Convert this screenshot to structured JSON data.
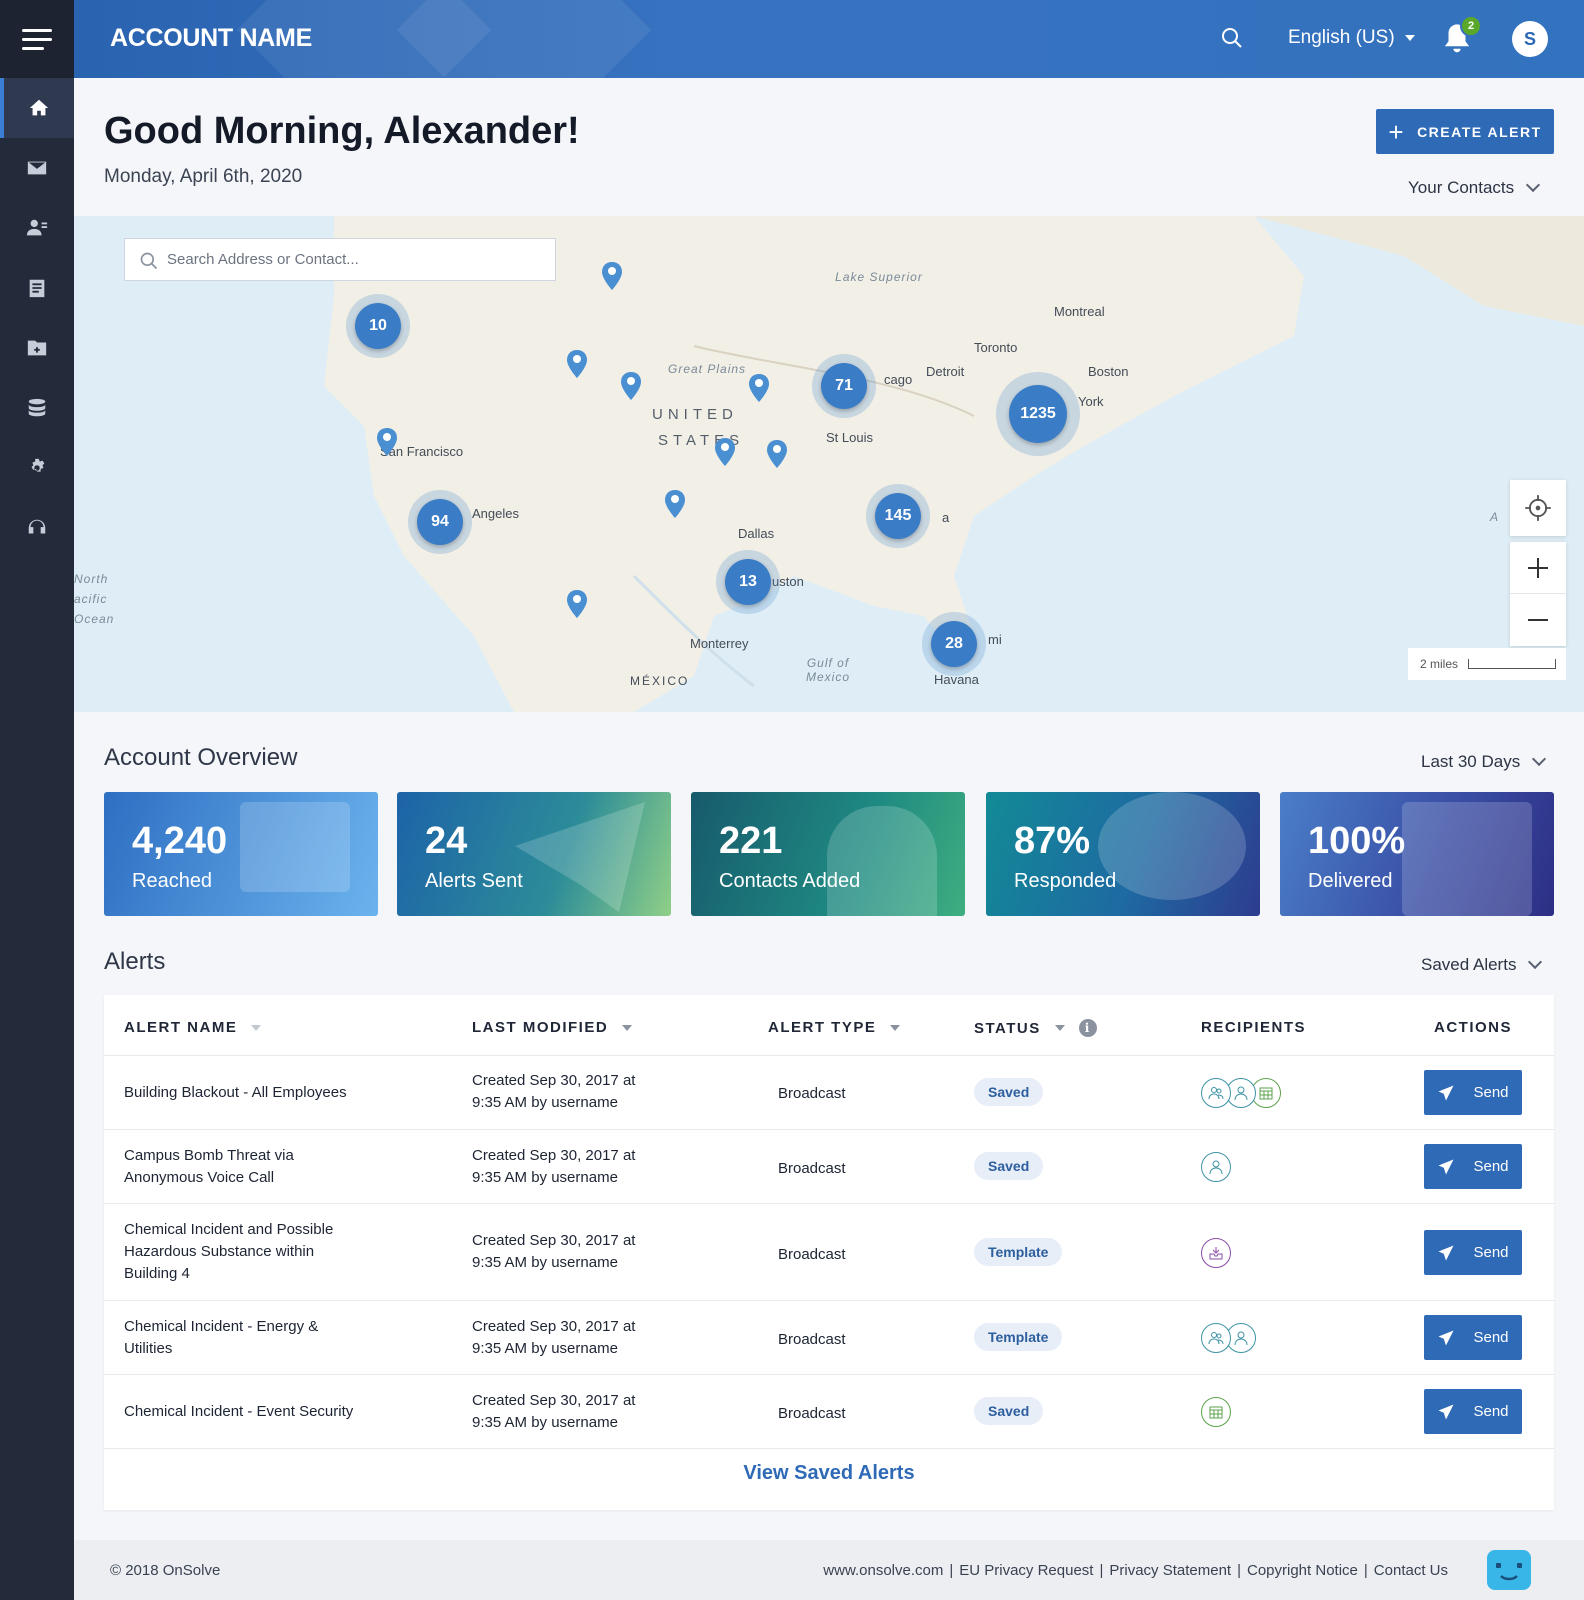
{
  "header": {
    "account_name": "ACCOUNT NAME",
    "language": "English (US)",
    "notification_count": "2",
    "avatar_initial": "S"
  },
  "sidebar": {
    "items": [
      {
        "icon": "home-icon",
        "active": true
      },
      {
        "icon": "mail-icon"
      },
      {
        "icon": "contacts-icon"
      },
      {
        "icon": "clipboard-icon"
      },
      {
        "icon": "folder-add-icon"
      },
      {
        "icon": "database-icon"
      },
      {
        "icon": "gear-icon"
      },
      {
        "icon": "headset-icon"
      }
    ]
  },
  "greeting": {
    "title": "Good Morning, Alexander!",
    "date": "Monday, April 6th, 2020",
    "create_label": "CREATE ALERT",
    "contacts_dropdown": "Your Contacts"
  },
  "map": {
    "search_placeholder": "Search Address or Contact...",
    "clusters": [
      "10",
      "71",
      "1235",
      "94",
      "145",
      "13",
      "28"
    ],
    "labels": {
      "lake_superior": "Lake Superior",
      "montreal": "Montreal",
      "toronto": "Toronto",
      "detroit": "Detroit",
      "boston": "Boston",
      "york": "York",
      "chicago": "cago",
      "great_plains": "Great Plains",
      "united": "UNITED",
      "states": "STATES",
      "st_louis": "St Louis",
      "san_francisco": "San Francisco",
      "angeles": "Angeles",
      "dallas": "Dallas",
      "houston": "uston",
      "north": "North",
      "pacific": "acific",
      "ocean": "Ocean",
      "monterrey": "Monterrey",
      "gulf": "Gulf of",
      "mexico_gulf": "Mexico",
      "mexico": "MÉXICO",
      "havana": "Havana",
      "miami": "mi",
      "atlanta": "a",
      "atlantic": "A"
    },
    "scale_label": "2 miles"
  },
  "overview": {
    "title": "Account Overview",
    "range": "Last 30 Days",
    "cards": [
      {
        "value": "4,240",
        "label": "Reached",
        "color": "#3577c9"
      },
      {
        "value": "24",
        "label": "Alerts Sent",
        "color": "#1f6da8"
      },
      {
        "value": "221",
        "label": "Contacts Added",
        "color": "#1b6f78"
      },
      {
        "value": "87%",
        "label": "Responded",
        "color": "#1b8a96"
      },
      {
        "value": "100%",
        "label": "Delivered",
        "color": "#3c4fa8"
      }
    ]
  },
  "alerts": {
    "title": "Alerts",
    "filter": "Saved Alerts",
    "columns": [
      "ALERT NAME",
      "LAST MODIFIED",
      "ALERT TYPE",
      "STATUS",
      "RECIPIENTS",
      "ACTIONS"
    ],
    "rows": [
      {
        "name": "Building Blackout - All Employees",
        "modified_1": "Created Sep 30, 2017 at",
        "modified_2": "9:35 AM by username",
        "type": "Broadcast",
        "status": "Saved",
        "recipients": [
          "group-icon",
          "person-icon",
          "calendar-icon"
        ],
        "action": "Send"
      },
      {
        "name": "Campus Bomb Threat via Anonymous Voice Call",
        "modified_1": "Created Sep 30, 2017 at",
        "modified_2": "9:35 AM by username",
        "type": "Broadcast",
        "status": "Saved",
        "recipients": [
          "person-icon"
        ],
        "action": "Send"
      },
      {
        "name": "Chemical Incident and Possible Hazardous Substance within Building 4",
        "modified_1": "Created Sep 30, 2017 at",
        "modified_2": "9:35 AM by username",
        "type": "Broadcast",
        "status": "Template",
        "recipients": [
          "inbox-icon"
        ],
        "action": "Send"
      },
      {
        "name": "Chemical Incident - Energy & Utilities",
        "modified_1": "Created Sep 30, 2017 at",
        "modified_2": "9:35 AM by username",
        "type": "Broadcast",
        "status": "Template",
        "recipients": [
          "group-icon",
          "person-icon"
        ],
        "action": "Send"
      },
      {
        "name": "Chemical Incident - Event Security",
        "modified_1": "Created Sep 30, 2017 at",
        "modified_2": "9:35 AM by username",
        "type": "Broadcast",
        "status": "Saved",
        "recipients": [
          "calendar-icon"
        ],
        "action": "Send"
      }
    ],
    "view_link": "View Saved Alerts"
  },
  "footer": {
    "copyright": "© 2018 OnSolve",
    "links": [
      "www.onsolve.com",
      "EU Privacy Request",
      "Privacy Statement",
      "Copyright Notice",
      "Contact Us"
    ]
  }
}
